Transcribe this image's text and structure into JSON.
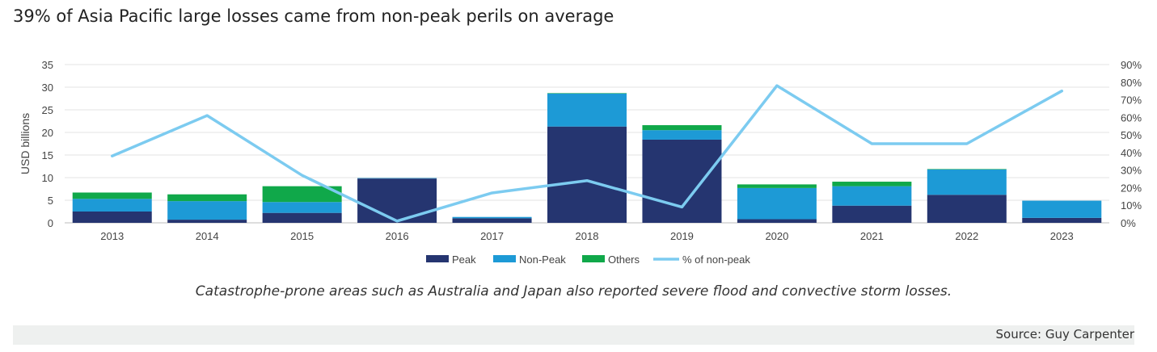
{
  "title": "39% of Asia Pacific large losses came from non-peak perils on average",
  "caption": "Catastrophe-prone areas such as Australia and Japan also reported severe flood and convective storm losses.",
  "source": "Source: Guy Carpenter",
  "chart_data": {
    "type": "bar",
    "stacked": true,
    "categories": [
      "2013",
      "2014",
      "2015",
      "2016",
      "2017",
      "2018",
      "2019",
      "2020",
      "2021",
      "2022",
      "2023"
    ],
    "series": [
      {
        "name": "Peak",
        "kind": "bar",
        "axis": "left",
        "color": "#253570",
        "values": [
          2.5,
          0.7,
          2.2,
          9.8,
          1.0,
          21.3,
          18.4,
          0.8,
          3.8,
          6.2,
          1.1
        ]
      },
      {
        "name": "Non-Peak",
        "kind": "bar",
        "axis": "left",
        "color": "#1d9ad6",
        "values": [
          2.8,
          4.1,
          2.4,
          0.1,
          0.3,
          7.3,
          2.1,
          6.9,
          4.3,
          5.6,
          3.8
        ]
      },
      {
        "name": "Others",
        "kind": "bar",
        "axis": "left",
        "color": "#10a84a",
        "values": [
          1.4,
          1.5,
          3.5,
          0,
          0,
          0.1,
          1.1,
          0.8,
          1.0,
          0.1,
          0
        ]
      },
      {
        "name": "% of non-peak",
        "kind": "line",
        "axis": "right",
        "color": "#7ccbf0",
        "values": [
          38,
          61,
          27,
          1,
          17,
          24,
          9,
          78,
          45,
          45,
          75
        ]
      }
    ],
    "y_left": {
      "label": "USD billions",
      "min": 0,
      "max": 35,
      "ticks": [
        "0",
        "5",
        "10",
        "15",
        "20",
        "25",
        "30",
        "35"
      ]
    },
    "y_right": {
      "min": 0,
      "max": 90,
      "ticks": [
        "0%",
        "10%",
        "20%",
        "30%",
        "40%",
        "50%",
        "60%",
        "70%",
        "80%",
        "90%"
      ]
    },
    "grid": true,
    "legend_position": "bottom"
  }
}
